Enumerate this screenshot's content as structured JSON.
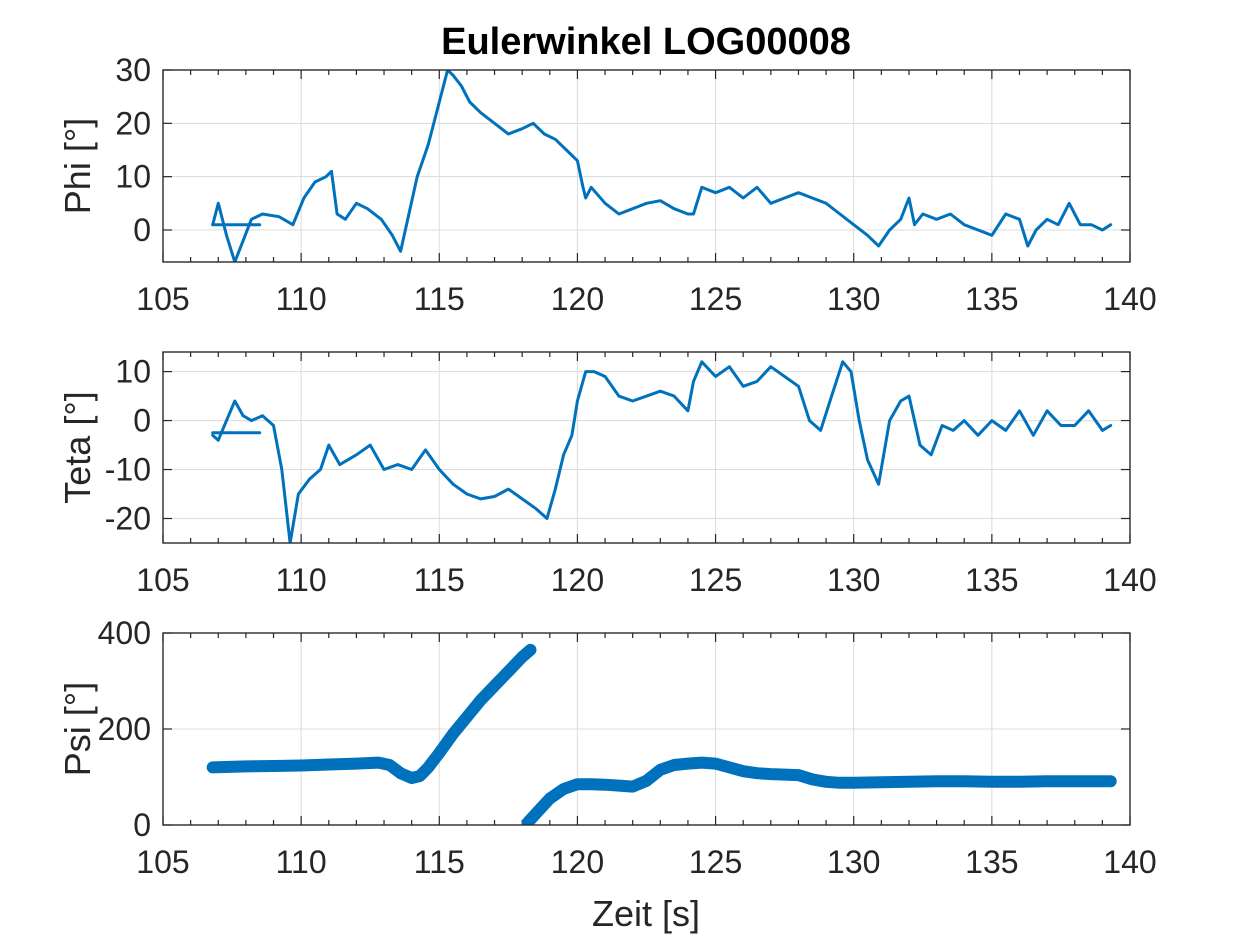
{
  "chart_data": {
    "type": "line",
    "title": "Eulerwinkel LOG00008",
    "xlabel": "Zeit [s]",
    "line_color": "#0072BD",
    "grid": true,
    "subplots": [
      {
        "name": "phi",
        "ylabel": "Phi [°]",
        "xlim": [
          105,
          140
        ],
        "ylim": [
          -6,
          30
        ],
        "xticks": [
          105,
          110,
          115,
          120,
          125,
          130,
          135,
          140
        ],
        "yticks": [
          0,
          10,
          20,
          30
        ],
        "series": [
          {
            "x": [
              106.8,
              107.0,
              107.3,
              107.6,
              107.9,
              108.2,
              108.6,
              109.2,
              109.7,
              110.1,
              110.5,
              110.9,
              111.1,
              111.3,
              111.6,
              112.0,
              112.4,
              112.9,
              113.3,
              113.6,
              113.9,
              114.2,
              114.6,
              115.0,
              115.3,
              115.5,
              115.8,
              116.1,
              116.5,
              117.0,
              117.5,
              118.0,
              118.4,
              118.8,
              119.2,
              119.6,
              120.0,
              120.2,
              120.3,
              120.5,
              121.0,
              121.5,
              122.0,
              122.5,
              123.0,
              123.5,
              124.0,
              124.2,
              124.5,
              125.0,
              125.5,
              126.0,
              126.5,
              127.0,
              127.5,
              128.0,
              128.5,
              129.0,
              129.5,
              130.0,
              130.5,
              130.9,
              131.3,
              131.7,
              132.0,
              132.2,
              132.5,
              133.0,
              133.5,
              134.0,
              134.5,
              135.0,
              135.5,
              136.0,
              136.3,
              136.6,
              137.0,
              137.4,
              137.8,
              138.2,
              138.6,
              139.0,
              139.3
            ],
            "y": [
              1,
              5,
              -1,
              -6,
              -2,
              2,
              3,
              2.5,
              1,
              6,
              9,
              10,
              11,
              3,
              2,
              5,
              4,
              2,
              -1,
              -4,
              3,
              10,
              16,
              24,
              30,
              29,
              27,
              24,
              22,
              20,
              18,
              19,
              20,
              18,
              17,
              15,
              13,
              8,
              6,
              8,
              5,
              3,
              4,
              5,
              5.5,
              4,
              3,
              3,
              8,
              7,
              8,
              6,
              8,
              5,
              6,
              7,
              6,
              5,
              3,
              1,
              -1,
              -3,
              0,
              2,
              6,
              1,
              3,
              2,
              3,
              1,
              0,
              -1,
              3,
              2,
              -3,
              0,
              2,
              1,
              5,
              1,
              1,
              0,
              1
            ]
          },
          {
            "x": [
              106.8,
              108.5
            ],
            "y": [
              1,
              1
            ]
          }
        ]
      },
      {
        "name": "teta",
        "ylabel": "Teta [°]",
        "xlim": [
          105,
          140
        ],
        "ylim": [
          -25,
          14
        ],
        "xticks": [
          105,
          110,
          115,
          120,
          125,
          130,
          135,
          140
        ],
        "yticks": [
          -20,
          -10,
          0,
          10
        ],
        "series": [
          {
            "x": [
              106.8,
              107.0,
              107.3,
              107.6,
              107.9,
              108.2,
              108.6,
              109.0,
              109.3,
              109.6,
              109.9,
              110.3,
              110.7,
              111.0,
              111.4,
              112.0,
              112.5,
              113.0,
              113.5,
              114.0,
              114.5,
              115.0,
              115.5,
              116.0,
              116.5,
              117.0,
              117.5,
              118.0,
              118.5,
              118.9,
              119.2,
              119.5,
              119.8,
              120.0,
              120.3,
              120.6,
              121.0,
              121.5,
              122.0,
              122.5,
              123.0,
              123.5,
              124.0,
              124.2,
              124.5,
              125.0,
              125.5,
              126.0,
              126.5,
              127.0,
              127.5,
              128.0,
              128.4,
              128.8,
              129.2,
              129.6,
              129.9,
              130.2,
              130.5,
              130.9,
              131.3,
              131.7,
              132.0,
              132.4,
              132.8,
              133.2,
              133.6,
              134.0,
              134.5,
              135.0,
              135.5,
              136.0,
              136.5,
              137.0,
              137.5,
              138.0,
              138.5,
              139.0,
              139.3
            ],
            "y": [
              -3,
              -4,
              0,
              4,
              1,
              0,
              1,
              -1,
              -10,
              -25,
              -15,
              -12,
              -10,
              -5,
              -9,
              -7,
              -5,
              -10,
              -9,
              -10,
              -6,
              -10,
              -13,
              -15,
              -16,
              -15.5,
              -14,
              -16,
              -18,
              -20,
              -14,
              -7,
              -3,
              4,
              10,
              10,
              9,
              5,
              4,
              5,
              6,
              5,
              2,
              8,
              12,
              9,
              11,
              7,
              8,
              11,
              9,
              7,
              0,
              -2,
              5,
              12,
              10,
              0,
              -8,
              -13,
              0,
              4,
              5,
              -5,
              -7,
              -1,
              -2,
              0,
              -3,
              0,
              -2,
              2,
              -3,
              2,
              -1,
              -1,
              2,
              -2,
              -1
            ]
          },
          {
            "x": [
              106.8,
              108.5
            ],
            "y": [
              -2.5,
              -2.5
            ]
          }
        ]
      },
      {
        "name": "psi",
        "ylabel": "Psi [°]",
        "xlim": [
          105,
          140
        ],
        "ylim": [
          0,
          400
        ],
        "xticks": [
          105,
          110,
          115,
          120,
          125,
          130,
          135,
          140
        ],
        "yticks": [
          0,
          200,
          400
        ],
        "series": [
          {
            "x": [
              106.8,
              108.0,
              109.0,
              110.0,
              111.0,
              112.0,
              112.8,
              113.2,
              113.6,
              114.0,
              114.3,
              114.6,
              115.0,
              115.5,
              116.0,
              116.5,
              117.0,
              117.5,
              118.0,
              118.3
            ],
            "y": [
              120,
              122,
              123,
              124,
              126,
              128,
              130,
              125,
              108,
              98,
              102,
              120,
              150,
              190,
              225,
              260,
              290,
              320,
              350,
              365
            ]
          },
          {
            "x": [
              118.2,
              118.6,
              119.0,
              119.5,
              120.0,
              120.5,
              121.0,
              121.5,
              122.0,
              122.5,
              123.0,
              123.5,
              124.0,
              124.5,
              125.0,
              125.5,
              126.0,
              126.5,
              127.0,
              127.5,
              128.0,
              128.5,
              129.0,
              129.5,
              130.0,
              131.0,
              132.0,
              133.0,
              134.0,
              135.0,
              136.0,
              137.0,
              138.0,
              139.3
            ],
            "y": [
              5,
              30,
              55,
              75,
              85,
              85,
              84,
              82,
              80,
              92,
              115,
              125,
              128,
              130,
              128,
              120,
              112,
              108,
              106,
              105,
              104,
              95,
              90,
              88,
              88,
              89,
              90,
              91,
              91,
              90,
              90,
              91,
              91,
              91
            ]
          }
        ]
      }
    ]
  }
}
